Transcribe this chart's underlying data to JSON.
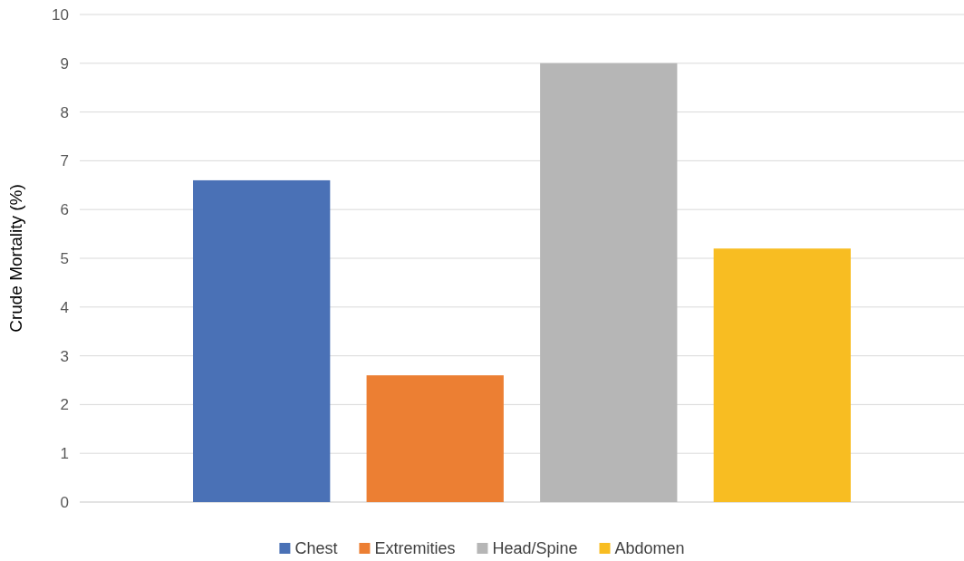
{
  "chart_data": {
    "type": "bar",
    "ylabel": "Crude Mortality (%)",
    "categories": [
      null
    ],
    "series": [
      {
        "name": "Chest",
        "color": "#4a71b6",
        "values": [
          6.6
        ]
      },
      {
        "name": "Extremities",
        "color": "#ec7f33",
        "values": [
          2.6
        ]
      },
      {
        "name": "Head/Spine",
        "color": "#b6b6b6",
        "values": [
          9.0
        ]
      },
      {
        "name": "Abdomen",
        "color": "#f8bd22",
        "values": [
          5.2
        ]
      }
    ],
    "ylim": [
      0,
      10
    ],
    "yticks": [
      0,
      1,
      2,
      3,
      4,
      5,
      6,
      7,
      8,
      9,
      10
    ],
    "grid": "y",
    "legend": "bottom"
  }
}
